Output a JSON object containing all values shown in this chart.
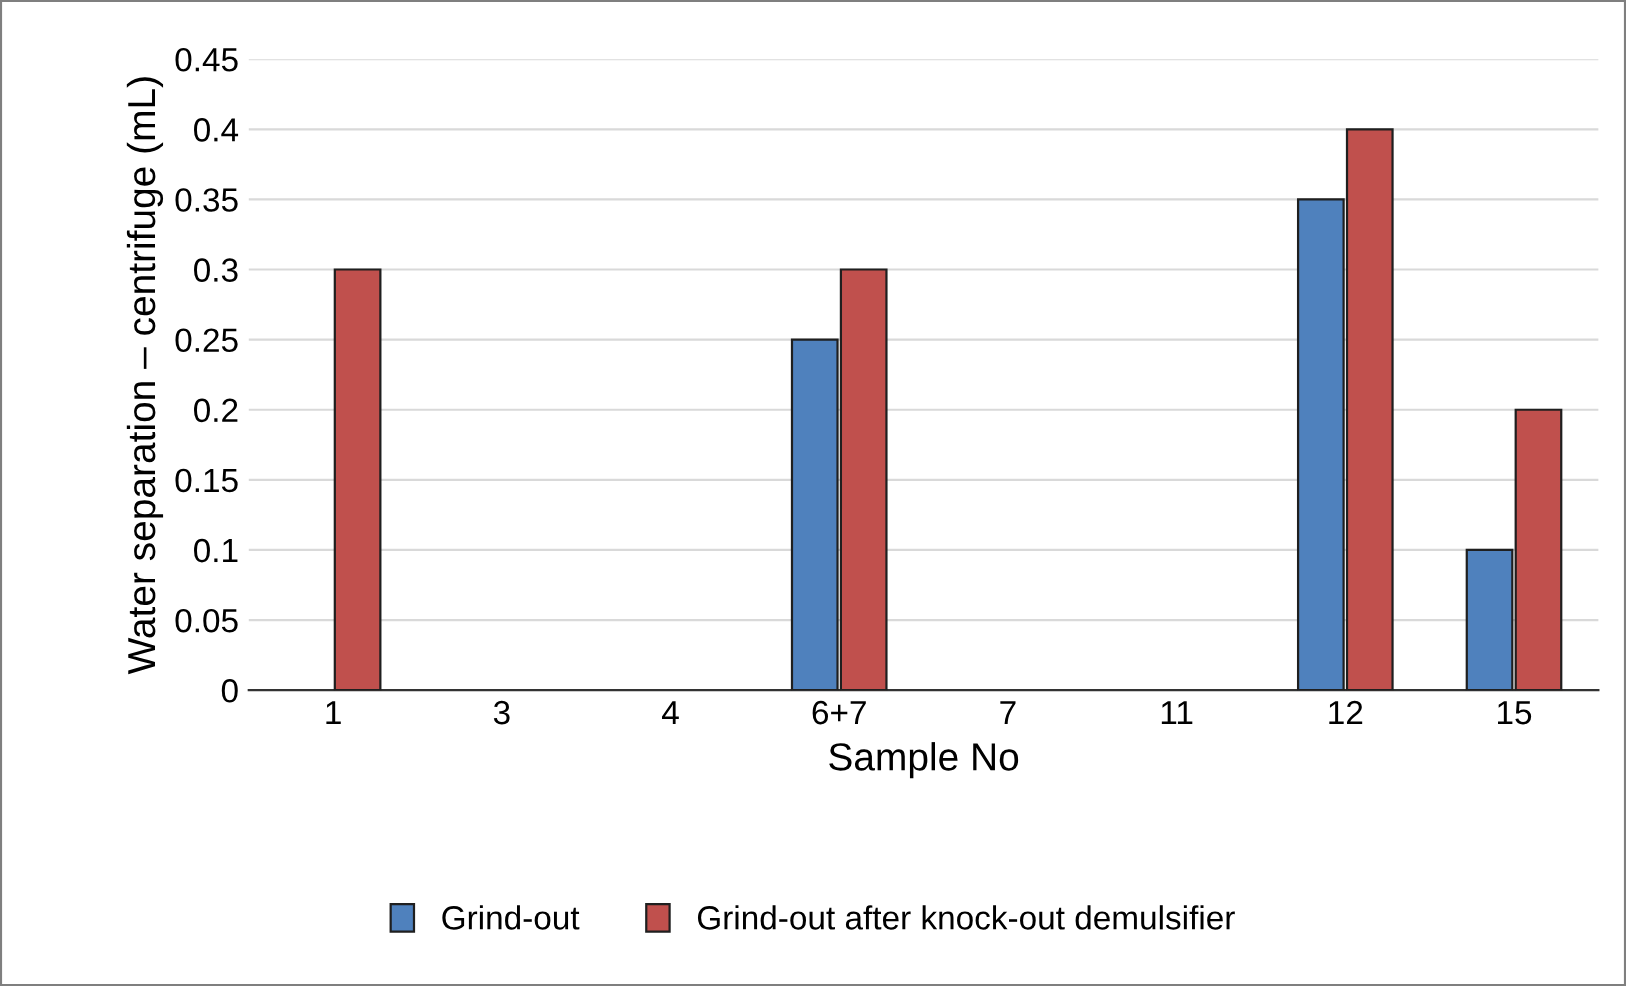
{
  "chart_data": {
    "type": "bar",
    "xlabel": "Sample No",
    "ylabel": "Water separation – centrifuge (mL)",
    "categories": [
      "1",
      "3",
      "4",
      "6+7",
      "7",
      "11",
      "12",
      "15"
    ],
    "series": [
      {
        "name": "Grind-out",
        "color": "#4f81bd",
        "values": [
          null,
          null,
          null,
          0.25,
          null,
          null,
          0.35,
          0.1
        ]
      },
      {
        "name": "Grind-out after knock-out demulsifier",
        "color": "#c0504d",
        "values": [
          0.3,
          null,
          null,
          0.3,
          null,
          null,
          0.4,
          0.2
        ]
      }
    ],
    "ylim": [
      0,
      0.45
    ],
    "yticks": [
      0,
      0.05,
      0.1,
      0.15,
      0.2,
      0.25,
      0.3,
      0.35,
      0.4,
      0.45
    ],
    "grid": "y",
    "legend": "bottom"
  }
}
